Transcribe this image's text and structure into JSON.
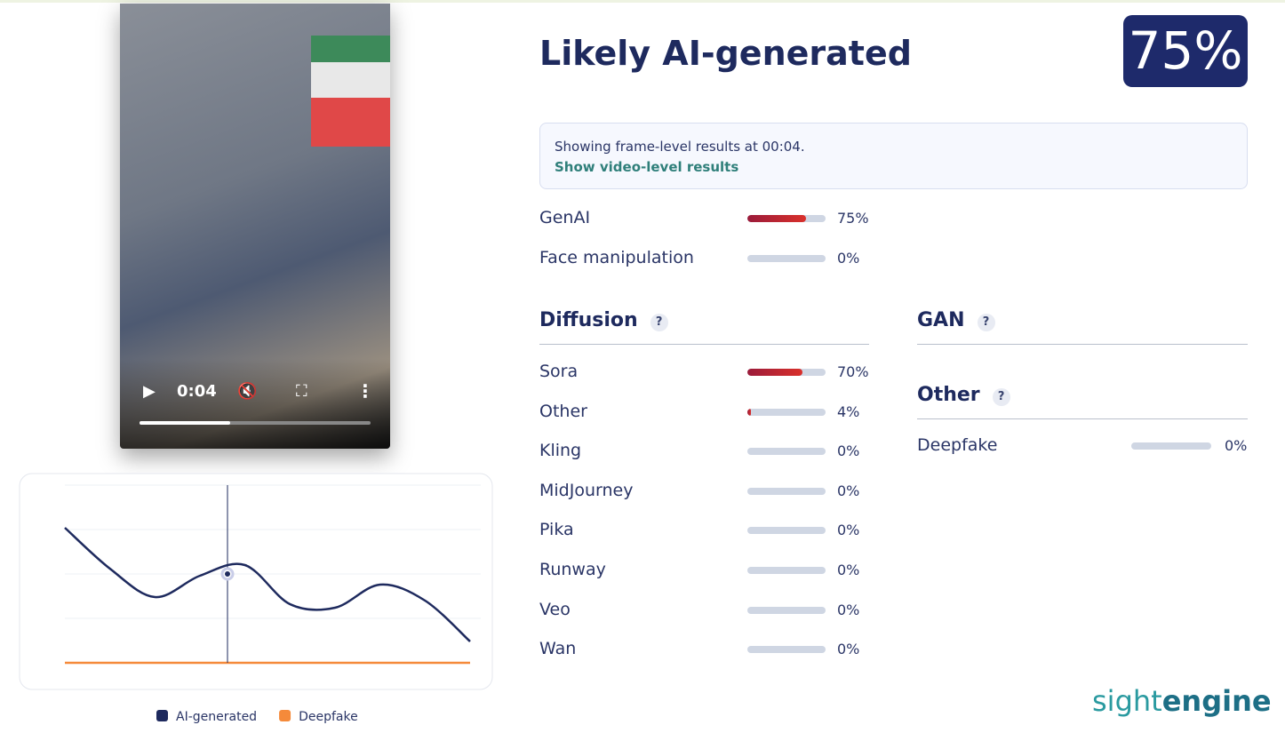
{
  "video": {
    "time": "0:04"
  },
  "header": {
    "title": "Likely AI-generated",
    "score": "75%"
  },
  "info": {
    "text": "Showing frame-level results at 00:04.",
    "link": "Show video-level results"
  },
  "summary": [
    {
      "label": "GenAI",
      "value": 75,
      "value_label": "75%"
    },
    {
      "label": "Face manipulation",
      "value": 0,
      "value_label": "0%"
    }
  ],
  "sections": [
    {
      "title": "Diffusion",
      "help": "?",
      "rows": [
        {
          "label": "Sora",
          "value": 70,
          "value_label": "70%"
        },
        {
          "label": "Other",
          "value": 4,
          "value_label": "4%"
        },
        {
          "label": "Kling",
          "value": 0,
          "value_label": "0%"
        },
        {
          "label": "MidJourney",
          "value": 0,
          "value_label": "0%"
        },
        {
          "label": "Pika",
          "value": 0,
          "value_label": "0%"
        },
        {
          "label": "Runway",
          "value": 0,
          "value_label": "0%"
        },
        {
          "label": "Veo",
          "value": 0,
          "value_label": "0%"
        },
        {
          "label": "Wan",
          "value": 0,
          "value_label": "0%"
        }
      ]
    },
    {
      "title": "GAN",
      "help": "?",
      "rows": []
    },
    {
      "title": "Other",
      "help": "?",
      "rows": [
        {
          "label": "Deepfake",
          "value": 0,
          "value_label": "0%"
        }
      ]
    }
  ],
  "logo": {
    "part1": "sight",
    "part2": "engine"
  },
  "chart_data": {
    "type": "line",
    "categories": [
      null,
      null,
      null,
      null,
      null,
      null,
      null,
      null,
      null,
      null
    ],
    "ylim": [
      0,
      100
    ],
    "series": [
      {
        "name": "AI-generated",
        "color": "#1e2a5e",
        "values": [
          76,
          53,
          37,
          49,
          55,
          33,
          31,
          44,
          35,
          12
        ]
      },
      {
        "name": "Deepfake",
        "color": "#f58a3a",
        "values": [
          0,
          0,
          0,
          0,
          0,
          0,
          0,
          0,
          0,
          0
        ]
      }
    ]
  }
}
